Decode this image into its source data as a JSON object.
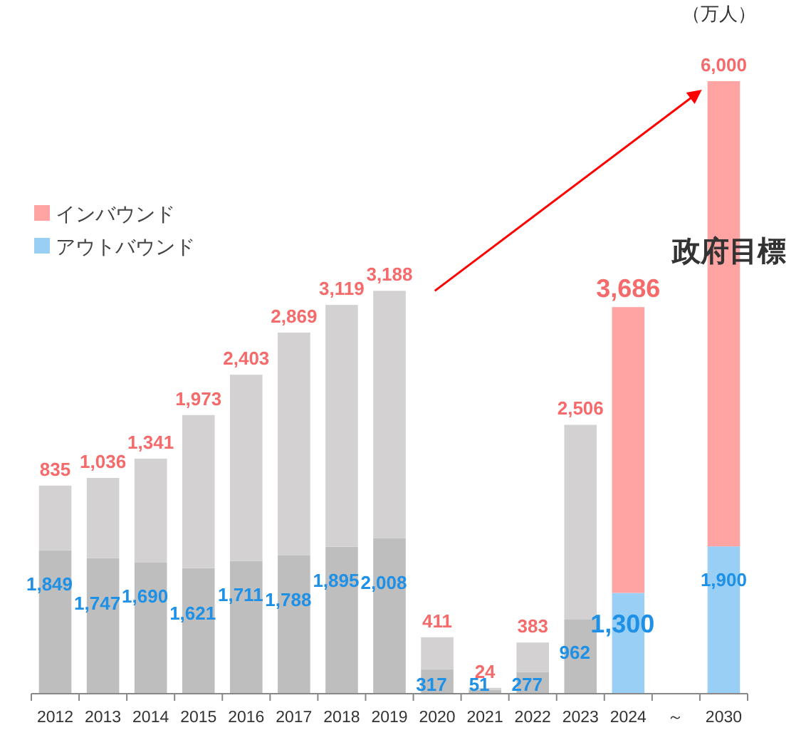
{
  "chart_data": {
    "type": "bar",
    "stacked": true,
    "legend": "top left",
    "categories": [
      "2012",
      "2013",
      "2014",
      "2015",
      "2016",
      "2017",
      "2018",
      "2019",
      "2020",
      "2021",
      "2022",
      "2023",
      "2024",
      "～",
      "2030"
    ],
    "series": [
      {
        "name": "アウトバウンド",
        "color": "#99cff5",
        "colors": [
          "#bebebe",
          "#bebebe",
          "#bebebe",
          "#bebebe",
          "#bebebe",
          "#bebebe",
          "#bebebe",
          "#bebebe",
          "#bebebe",
          "#bebebe",
          "#bebebe",
          "#bebebe",
          "#99cff5",
          null,
          "#99cff5"
        ],
        "values": [
          1849,
          1747,
          1690,
          1621,
          1711,
          1788,
          1895,
          2008,
          317,
          51,
          277,
          962,
          1300,
          null,
          1900
        ],
        "value_labels": [
          "1,849",
          "1,747",
          "1,690",
          "1,621",
          "1,711",
          "1,788",
          "1,895",
          "2,008",
          "317",
          "51",
          "277",
          "962",
          "1,300",
          null,
          "1,900"
        ]
      },
      {
        "name": "インバウンド",
        "color": "#ffa3a3",
        "colors": [
          "#d3d1d2",
          "#d3d1d2",
          "#d3d1d2",
          "#d3d1d2",
          "#d3d1d2",
          "#d3d1d2",
          "#d3d1d2",
          "#d3d1d2",
          "#d3d1d2",
          "#d3d1d2",
          "#d3d1d2",
          "#d3d1d2",
          "#ffa3a3",
          null,
          "#ffa3a3"
        ],
        "values": [
          835,
          1036,
          1341,
          1973,
          2403,
          2869,
          3119,
          3188,
          411,
          24,
          383,
          2506,
          3686,
          null,
          6000
        ],
        "value_labels": [
          "835",
          "1,036",
          "1,341",
          "1,973",
          "2,403",
          "2,869",
          "3,119",
          "3,188",
          "411",
          "24",
          "383",
          "2,506",
          "3,686",
          null,
          "6,000"
        ]
      }
    ],
    "annotations": [
      "（万人）",
      "政府目標"
    ]
  }
}
